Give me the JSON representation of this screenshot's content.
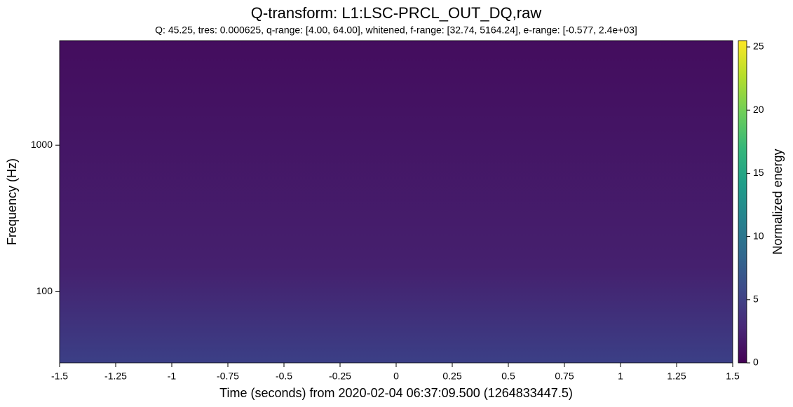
{
  "chart_data": {
    "type": "spectrogram",
    "title": "Q-transform: L1:LSC-PRCL_OUT_DQ,raw",
    "subtitle": "Q: 45.25, tres: 0.000625, q-range: [4.00, 64.00], whitened, f-range: [32.74, 5164.24], e-range: [-0.577, 2.4e+03]",
    "x_label": "Time (seconds) from 2020-02-04 06:37:09.500 (1264833447.5)",
    "y_label": "Frequency (Hz)",
    "xlim": [
      -1.5,
      1.5
    ],
    "xticks": [
      -1.5,
      -1.25,
      -1,
      -0.75,
      -0.5,
      -0.25,
      0,
      0.25,
      0.5,
      0.75,
      1,
      1.25,
      1.5
    ],
    "ylim": [
      32.74,
      5164.24
    ],
    "yticks": [
      100,
      1000
    ],
    "y_scale": "log",
    "colorbar": {
      "label": "Normalized energy",
      "lim": [
        0,
        25.5
      ],
      "ticks": [
        0,
        5,
        10,
        15,
        20,
        25
      ],
      "colormap": [
        "#440154",
        "#482878",
        "#3e4989",
        "#31688e",
        "#26828e",
        "#1f9e89",
        "#35b779",
        "#6ece58",
        "#b5de2b",
        "#fde725"
      ]
    }
  }
}
